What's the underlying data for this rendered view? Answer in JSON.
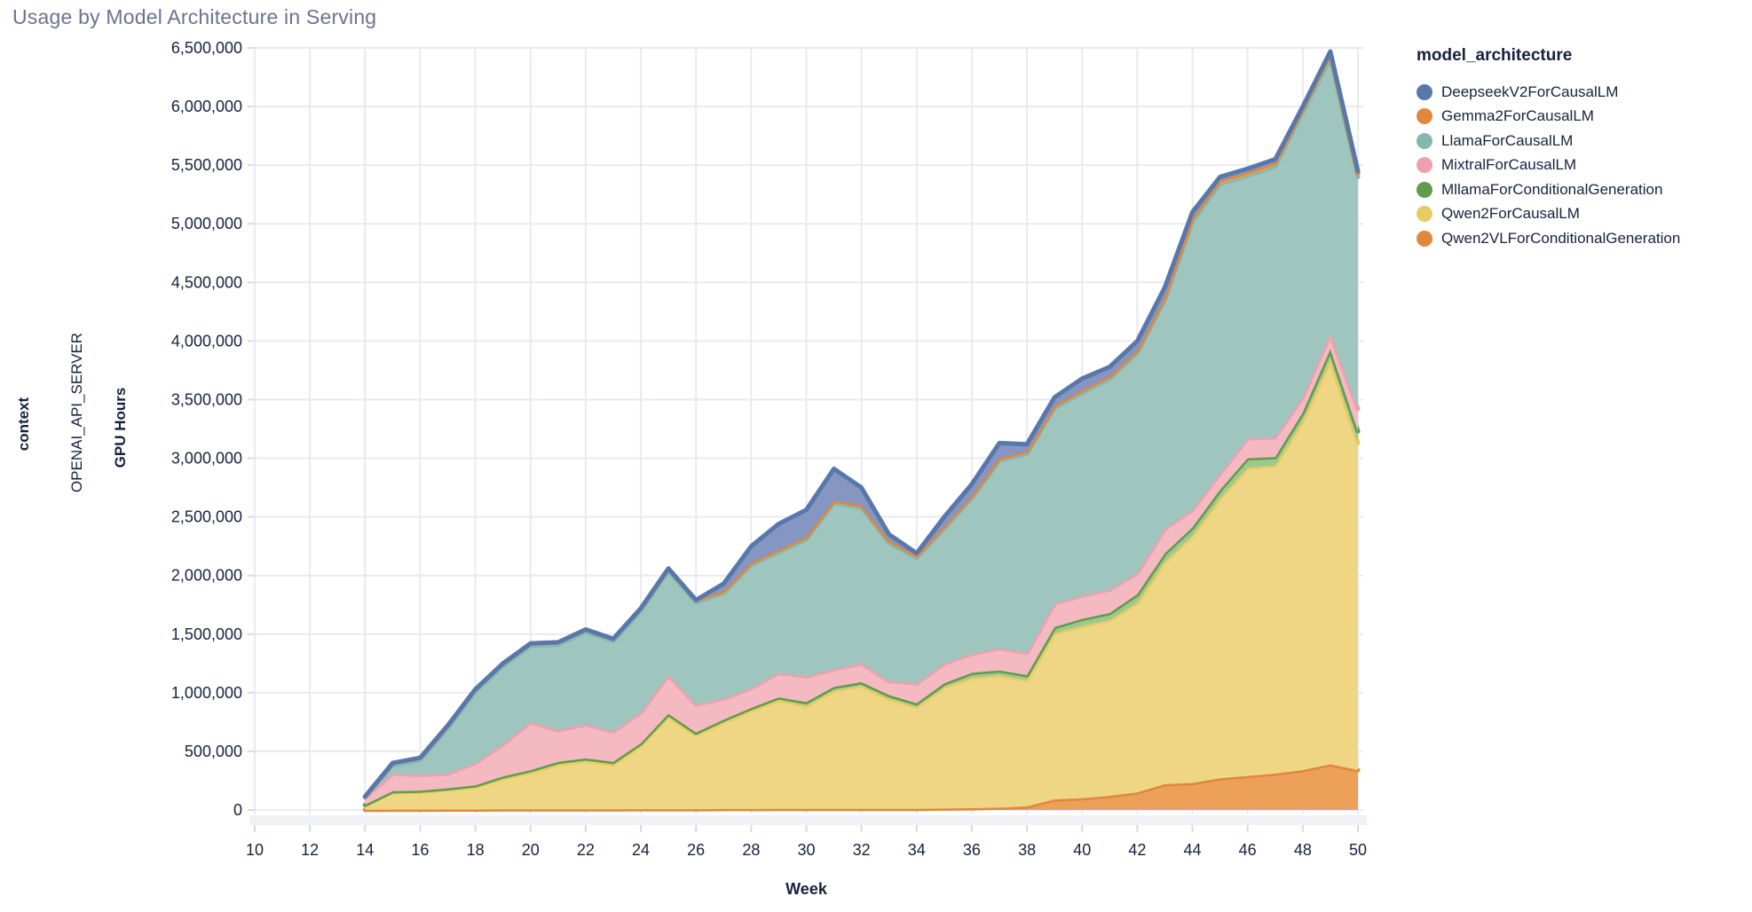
{
  "title": "Usage by Model Architecture in Serving",
  "facet": {
    "row_title": "context",
    "row_value": "OPENAI_API_SERVER"
  },
  "legend": {
    "title": "model_architecture",
    "items": [
      {
        "label": "DeepseekV2ForCausalLM",
        "color": "#5878ab"
      },
      {
        "label": "Gemma2ForCausalLM",
        "color": "#e0873c"
      },
      {
        "label": "LlamaForCausalLM",
        "color": "#85b7b0"
      },
      {
        "label": "MixtralForCausalLM",
        "color": "#efa0ac"
      },
      {
        "label": "MllamaForConditionalGeneration",
        "color": "#5f9c4c"
      },
      {
        "label": "Qwen2ForCausalLM",
        "color": "#e5cd63"
      },
      {
        "label": "Qwen2VLForConditionalGeneration",
        "color": "#e0873c"
      }
    ]
  },
  "chart_data": {
    "type": "area",
    "stacked": true,
    "title": "Usage by Model Architecture in Serving",
    "xlabel": "Week",
    "ylabel": "GPU Hours",
    "xlim": [
      10,
      50
    ],
    "ylim": [
      0,
      6500000
    ],
    "grid": true,
    "legend_position": "right",
    "x_ticks": [
      10,
      12,
      14,
      16,
      18,
      20,
      22,
      24,
      26,
      28,
      30,
      32,
      34,
      36,
      38,
      40,
      42,
      44,
      46,
      48,
      50
    ],
    "y_ticks": [
      0,
      500000,
      1000000,
      1500000,
      2000000,
      2500000,
      3000000,
      3500000,
      4000000,
      4500000,
      5000000,
      5500000,
      6000000,
      6500000
    ],
    "y_tick_labels": [
      "0",
      "500,000",
      "1,000,000",
      "1,500,000",
      "2,000,000",
      "2,500,000",
      "3,000,000",
      "3,500,000",
      "4,000,000",
      "4,500,000",
      "5,000,000",
      "5,500,000",
      "6,000,000",
      "6,500,000"
    ],
    "x": [
      14,
      15,
      16,
      17,
      18,
      19,
      20,
      21,
      22,
      23,
      24,
      25,
      26,
      27,
      28,
      29,
      30,
      31,
      32,
      33,
      34,
      35,
      36,
      37,
      38,
      39,
      40,
      41,
      42,
      43,
      44,
      45,
      46,
      47,
      48,
      49,
      50
    ],
    "series": [
      {
        "name": "Qwen2VLForConditionalGeneration",
        "stroke": "#e0873c",
        "fill": "#eda05a",
        "values": [
          2000,
          3000,
          3000,
          4000,
          4000,
          5000,
          5000,
          6000,
          6000,
          6000,
          7000,
          7000,
          7000,
          8000,
          8000,
          9000,
          9000,
          10000,
          10000,
          10000,
          10000,
          12000,
          15000,
          20000,
          30000,
          90000,
          100000,
          120000,
          150000,
          220000,
          230000,
          270000,
          290000,
          310000,
          340000,
          390000,
          340000
        ]
      },
      {
        "name": "Qwen2ForCausalLM",
        "stroke": "#e5cd63",
        "fill": "#eed684",
        "values": [
          38000,
          147000,
          152000,
          171000,
          196000,
          265000,
          315000,
          384000,
          414000,
          384000,
          543000,
          793000,
          633000,
          742000,
          842000,
          931000,
          881000,
          1010000,
          1050000,
          940000,
          870000,
          1038000,
          1115000,
          1130000,
          1080000,
          1420000,
          1470000,
          1500000,
          1620000,
          1900000,
          2110000,
          2390000,
          2630000,
          2630000,
          2980000,
          3450000,
          2790000
        ]
      },
      {
        "name": "MllamaForConditionalGeneration",
        "stroke": "#5f9c4c",
        "fill": "#9fc78e",
        "values": [
          5000,
          10000,
          10000,
          10000,
          10000,
          15000,
          20000,
          20000,
          20000,
          20000,
          20000,
          20000,
          20000,
          20000,
          20000,
          20000,
          30000,
          30000,
          30000,
          30000,
          30000,
          30000,
          40000,
          40000,
          40000,
          50000,
          60000,
          60000,
          70000,
          70000,
          70000,
          70000,
          80000,
          70000,
          70000,
          90000,
          100000
        ]
      },
      {
        "name": "MixtralForCausalLM",
        "stroke": "#efa0ac",
        "fill": "#f5b9c1",
        "values": [
          60000,
          150000,
          135000,
          125000,
          190000,
          275000,
          410000,
          270000,
          290000,
          260000,
          260000,
          330000,
          240000,
          180000,
          170000,
          210000,
          220000,
          150000,
          160000,
          120000,
          170000,
          170000,
          160000,
          190000,
          190000,
          200000,
          200000,
          200000,
          180000,
          210000,
          150000,
          140000,
          170000,
          170000,
          130000,
          130000,
          190000
        ]
      },
      {
        "name": "LlamaForCausalLM",
        "stroke": "#85b7b0",
        "fill": "#9fc5bf",
        "values": [
          5000,
          70000,
          125000,
          390000,
          610000,
          670000,
          650000,
          730000,
          790000,
          770000,
          870000,
          890000,
          870000,
          900000,
          1050000,
          1030000,
          1170000,
          1420000,
          1330000,
          1180000,
          1070000,
          1150000,
          1330000,
          1600000,
          1700000,
          1670000,
          1730000,
          1800000,
          1880000,
          1950000,
          2460000,
          2470000,
          2240000,
          2310000,
          2430000,
          2350000,
          1980000
        ]
      },
      {
        "name": "Gemma2ForCausalLM",
        "stroke": "#e0873c",
        "fill": "#eda05a",
        "values": [
          5000,
          20000,
          20000,
          20000,
          20000,
          20000,
          20000,
          20000,
          20000,
          20000,
          20000,
          20000,
          20000,
          20000,
          20000,
          20000,
          20000,
          20000,
          20000,
          20000,
          20000,
          20000,
          20000,
          20000,
          20000,
          20000,
          20000,
          20000,
          20000,
          30000,
          30000,
          30000,
          30000,
          30000,
          30000,
          40000,
          30000
        ]
      },
      {
        "name": "DeepseekV2ForCausalLM",
        "stroke": "#5878ab",
        "fill": "#8496c1",
        "values": [
          0,
          0,
          0,
          0,
          0,
          0,
          0,
          0,
          0,
          0,
          0,
          0,
          0,
          60000,
          140000,
          220000,
          230000,
          270000,
          150000,
          50000,
          20000,
          80000,
          100000,
          130000,
          60000,
          70000,
          100000,
          80000,
          80000,
          80000,
          50000,
          30000,
          30000,
          30000,
          20000,
          20000,
          20000
        ]
      }
    ]
  }
}
